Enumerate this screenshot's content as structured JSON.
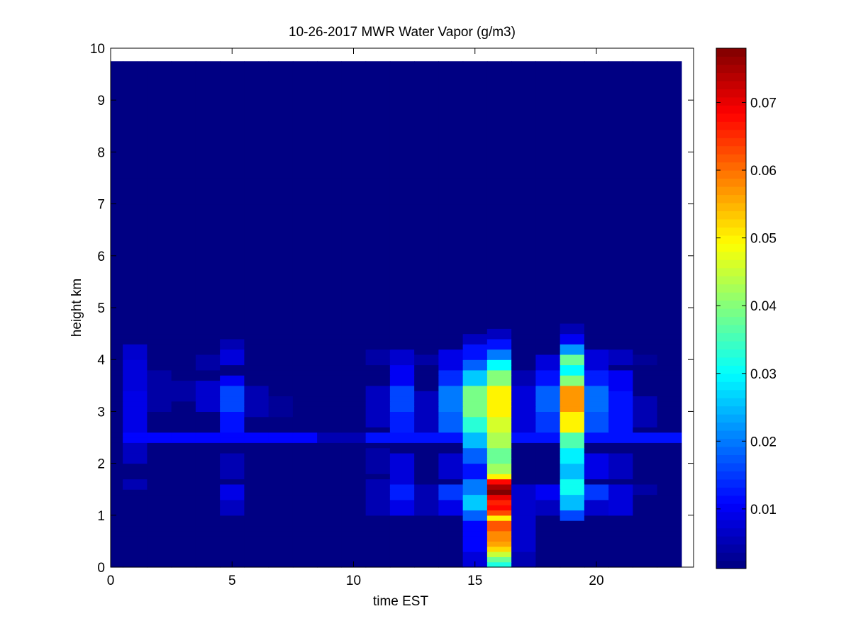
{
  "chart_data": {
    "type": "heatmap",
    "title": "10-26-2017 MWR Water Vapor (g/m3)",
    "xlabel": "time EST",
    "ylabel": "height km",
    "xlim": [
      0,
      24
    ],
    "ylim": [
      0,
      10
    ],
    "xticks": [
      0,
      5,
      10,
      15,
      20
    ],
    "yticks": [
      0,
      1,
      2,
      3,
      4,
      5,
      6,
      7,
      8,
      9,
      10
    ],
    "x_edges": [
      0,
      0.5,
      1.5,
      2.5,
      3.5,
      4.5,
      5.5,
      6.5,
      7.5,
      8.5,
      9.5,
      10.5,
      11.5,
      12.5,
      13.5,
      14.5,
      15.5,
      16.5,
      17.5,
      18.5,
      19.5,
      20.5,
      21.5,
      22.5,
      23.5
    ],
    "y_edges": [
      0,
      0.1,
      0.2,
      0.3,
      0.4,
      0.5,
      0.6,
      0.7,
      0.8,
      0.9,
      1.0,
      1.1,
      1.2,
      1.3,
      1.4,
      1.5,
      1.6,
      1.7,
      1.8,
      1.9,
      2.0,
      2.1,
      2.2,
      2.3,
      2.4,
      2.5,
      2.6,
      2.7,
      2.8,
      2.9,
      3.0,
      3.1,
      3.2,
      3.3,
      3.4,
      3.5,
      3.6,
      3.7,
      3.8,
      3.9,
      4.0,
      4.1,
      4.2,
      4.3,
      4.4,
      4.5,
      4.6,
      4.7,
      4.8,
      4.9,
      5.0,
      5.5,
      6.0,
      6.5,
      7.0,
      7.5,
      8.0,
      8.5,
      9.0,
      9.75
    ],
    "colorbar": {
      "colormap": "jet",
      "clim": [
        0.0012,
        0.078
      ],
      "ticks": [
        0.01,
        0.02,
        0.03,
        0.04,
        0.05,
        0.06,
        0.07
      ],
      "tick_labels": [
        "0.01",
        "0.02",
        "0.03",
        "0.04",
        "0.05",
        "0.06",
        "0.07"
      ]
    },
    "background_value": 0.0015,
    "base_layers": [
      {
        "y0": 2.4,
        "y1": 2.6,
        "x0": 0.5,
        "x1": 8.5,
        "value": 0.011
      },
      {
        "y0": 2.4,
        "y1": 2.6,
        "x0": 8.5,
        "x1": 10.5,
        "value": 0.005
      },
      {
        "y0": 2.4,
        "y1": 2.6,
        "x0": 10.5,
        "x1": 23.5,
        "value": 0.012
      }
    ],
    "columns": [
      {
        "x0": 0.5,
        "x1": 1.5,
        "bands": [
          [
            1.5,
            1.7,
            0.005
          ],
          [
            2.0,
            2.4,
            0.006
          ],
          [
            2.6,
            3.4,
            0.009
          ],
          [
            3.4,
            4.0,
            0.008
          ],
          [
            4.0,
            4.3,
            0.007
          ]
        ]
      },
      {
        "x0": 1.5,
        "x1": 2.5,
        "bands": [
          [
            3.0,
            3.8,
            0.004
          ]
        ]
      },
      {
        "x0": 2.5,
        "x1": 3.5,
        "bands": [
          [
            3.2,
            3.6,
            0.004
          ]
        ]
      },
      {
        "x0": 3.5,
        "x1": 4.5,
        "bands": [
          [
            3.0,
            3.6,
            0.007
          ],
          [
            3.8,
            4.1,
            0.004
          ]
        ]
      },
      {
        "x0": 4.5,
        "x1": 5.5,
        "bands": [
          [
            1.0,
            1.3,
            0.006
          ],
          [
            1.3,
            1.6,
            0.009
          ],
          [
            1.7,
            2.2,
            0.005
          ],
          [
            2.6,
            3.0,
            0.012
          ],
          [
            3.0,
            3.5,
            0.016
          ],
          [
            3.5,
            3.7,
            0.01
          ],
          [
            3.9,
            4.2,
            0.008
          ],
          [
            4.2,
            4.4,
            0.005
          ]
        ]
      },
      {
        "x0": 5.5,
        "x1": 6.5,
        "bands": [
          [
            2.9,
            3.5,
            0.005
          ]
        ]
      },
      {
        "x0": 6.5,
        "x1": 7.5,
        "bands": [
          [
            2.9,
            3.3,
            0.003
          ]
        ]
      },
      {
        "x0": 10.5,
        "x1": 11.5,
        "bands": [
          [
            1.0,
            1.7,
            0.005
          ],
          [
            1.8,
            2.3,
            0.004
          ],
          [
            2.7,
            3.5,
            0.006
          ],
          [
            3.9,
            4.2,
            0.004
          ]
        ]
      },
      {
        "x0": 11.5,
        "x1": 12.5,
        "bands": [
          [
            1.0,
            1.3,
            0.009
          ],
          [
            1.3,
            1.6,
            0.013
          ],
          [
            1.6,
            2.2,
            0.008
          ],
          [
            2.6,
            3.0,
            0.013
          ],
          [
            3.0,
            3.5,
            0.016
          ],
          [
            3.5,
            3.9,
            0.01
          ],
          [
            3.9,
            4.2,
            0.007
          ]
        ]
      },
      {
        "x0": 12.5,
        "x1": 13.5,
        "bands": [
          [
            1.0,
            1.6,
            0.005
          ],
          [
            2.6,
            3.4,
            0.006
          ],
          [
            3.9,
            4.1,
            0.004
          ]
        ]
      },
      {
        "x0": 13.5,
        "x1": 14.5,
        "bands": [
          [
            1.0,
            1.3,
            0.009
          ],
          [
            1.3,
            1.6,
            0.015
          ],
          [
            1.7,
            2.2,
            0.007
          ],
          [
            2.6,
            3.0,
            0.018
          ],
          [
            3.0,
            3.5,
            0.02
          ],
          [
            3.5,
            3.8,
            0.014
          ],
          [
            3.8,
            4.2,
            0.009
          ]
        ]
      },
      {
        "x0": 14.5,
        "x1": 15.5,
        "bands": [
          [
            0.0,
            0.3,
            0.008
          ],
          [
            0.3,
            0.9,
            0.011
          ],
          [
            0.9,
            1.1,
            0.018
          ],
          [
            1.1,
            1.4,
            0.026
          ],
          [
            1.4,
            1.7,
            0.02
          ],
          [
            1.7,
            2.0,
            0.012
          ],
          [
            2.0,
            2.3,
            0.018
          ],
          [
            2.3,
            2.6,
            0.025
          ],
          [
            2.6,
            2.9,
            0.033
          ],
          [
            2.9,
            3.5,
            0.039
          ],
          [
            3.5,
            3.8,
            0.026
          ],
          [
            3.8,
            4.0,
            0.018
          ],
          [
            4.0,
            4.3,
            0.012
          ],
          [
            4.3,
            4.5,
            0.006
          ]
        ]
      },
      {
        "x0": 15.5,
        "x1": 16.5,
        "bands": [
          [
            0.0,
            0.1,
            0.032
          ],
          [
            0.1,
            0.2,
            0.038
          ],
          [
            0.2,
            0.3,
            0.045
          ],
          [
            0.3,
            0.4,
            0.052
          ],
          [
            0.4,
            0.5,
            0.056
          ],
          [
            0.5,
            0.7,
            0.058
          ],
          [
            0.7,
            0.9,
            0.062
          ],
          [
            0.9,
            1.0,
            0.05
          ],
          [
            1.0,
            1.1,
            0.063
          ],
          [
            1.1,
            1.2,
            0.068
          ],
          [
            1.2,
            1.3,
            0.066
          ],
          [
            1.3,
            1.4,
            0.07
          ],
          [
            1.4,
            1.5,
            0.078
          ],
          [
            1.5,
            1.6,
            0.075
          ],
          [
            1.6,
            1.7,
            0.068
          ],
          [
            1.7,
            1.8,
            0.05
          ],
          [
            1.8,
            2.0,
            0.042
          ],
          [
            2.0,
            2.3,
            0.038
          ],
          [
            2.3,
            2.6,
            0.043
          ],
          [
            2.6,
            2.9,
            0.046
          ],
          [
            2.9,
            3.5,
            0.05
          ],
          [
            3.5,
            3.8,
            0.04
          ],
          [
            3.8,
            4.0,
            0.03
          ],
          [
            4.0,
            4.2,
            0.02
          ],
          [
            4.2,
            4.4,
            0.012
          ],
          [
            4.4,
            4.6,
            0.006
          ]
        ]
      },
      {
        "x0": 16.5,
        "x1": 17.5,
        "bands": [
          [
            0.0,
            0.3,
            0.005
          ],
          [
            0.3,
            0.9,
            0.007
          ],
          [
            0.9,
            1.6,
            0.007
          ],
          [
            2.6,
            3.5,
            0.008
          ],
          [
            3.5,
            3.8,
            0.005
          ]
        ]
      },
      {
        "x0": 17.5,
        "x1": 18.5,
        "bands": [
          [
            1.0,
            1.3,
            0.006
          ],
          [
            1.3,
            1.6,
            0.01
          ],
          [
            2.6,
            3.0,
            0.015
          ],
          [
            3.0,
            3.5,
            0.018
          ],
          [
            3.5,
            3.8,
            0.012
          ],
          [
            3.8,
            4.1,
            0.008
          ]
        ]
      },
      {
        "x0": 18.5,
        "x1": 19.5,
        "bands": [
          [
            0.9,
            1.1,
            0.016
          ],
          [
            1.1,
            1.4,
            0.025
          ],
          [
            1.4,
            1.7,
            0.031
          ],
          [
            1.7,
            2.0,
            0.025
          ],
          [
            2.0,
            2.3,
            0.029
          ],
          [
            2.3,
            2.6,
            0.036
          ],
          [
            2.6,
            3.0,
            0.05
          ],
          [
            3.0,
            3.5,
            0.057
          ],
          [
            3.5,
            3.7,
            0.04
          ],
          [
            3.7,
            3.9,
            0.03
          ],
          [
            3.9,
            4.1,
            0.038
          ],
          [
            4.1,
            4.3,
            0.022
          ],
          [
            4.3,
            4.5,
            0.01
          ],
          [
            4.5,
            4.7,
            0.005
          ]
        ]
      },
      {
        "x0": 19.5,
        "x1": 20.5,
        "bands": [
          [
            1.0,
            1.3,
            0.007
          ],
          [
            1.3,
            1.6,
            0.015
          ],
          [
            1.7,
            2.2,
            0.009
          ],
          [
            2.6,
            3.0,
            0.017
          ],
          [
            3.0,
            3.5,
            0.019
          ],
          [
            3.5,
            3.8,
            0.013
          ],
          [
            3.8,
            4.2,
            0.008
          ]
        ]
      },
      {
        "x0": 20.5,
        "x1": 21.5,
        "bands": [
          [
            1.0,
            1.6,
            0.008
          ],
          [
            1.7,
            2.2,
            0.006
          ],
          [
            2.6,
            3.4,
            0.012
          ],
          [
            3.4,
            3.8,
            0.01
          ],
          [
            3.9,
            4.2,
            0.006
          ]
        ]
      },
      {
        "x0": 21.5,
        "x1": 22.5,
        "bands": [
          [
            1.4,
            1.6,
            0.004
          ],
          [
            2.7,
            3.3,
            0.005
          ],
          [
            3.9,
            4.1,
            0.003
          ]
        ]
      }
    ]
  }
}
